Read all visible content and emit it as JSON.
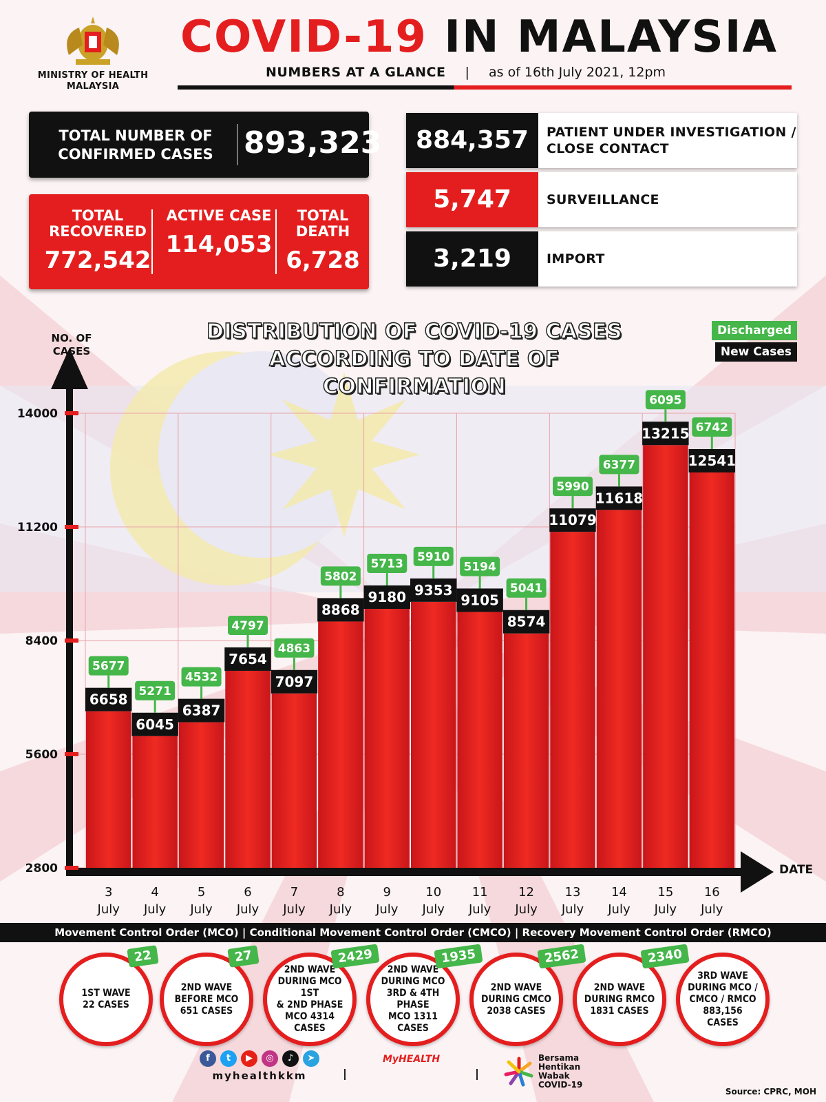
{
  "colors": {
    "red": "#e41e1e",
    "black": "#111111",
    "green": "#45b649",
    "bar_red": "#e41e1e"
  },
  "header": {
    "ministry": "MINISTRY OF HEALTH MALAYSIA",
    "title_red": "COVID-19",
    "title_black": "IN MALAYSIA",
    "subtitle": "NUMBERS AT A GLANCE",
    "separator": "|",
    "as_of": "as of 16th July 2021, 12pm"
  },
  "stats": {
    "total_label": "TOTAL NUMBER OF CONFIRMED CASES",
    "total_value": "893,323",
    "recovered_label": "TOTAL RECOVERED",
    "recovered_value": "772,542",
    "active_label": "ACTIVE CASE",
    "active_value": "114,053",
    "death_label": "TOTAL DEATH",
    "death_value": "6,728"
  },
  "categories_box": [
    {
      "value": "884,357",
      "label": "PATIENT UNDER INVESTIGATION / CLOSE CONTACT",
      "color": "#111111"
    },
    {
      "value": "5,747",
      "label": "SURVEILLANCE",
      "color": "#e41e1e"
    },
    {
      "value": "3,219",
      "label": "IMPORT",
      "color": "#111111"
    }
  ],
  "chart_data": {
    "type": "bar",
    "title": "DISTRIBUTION OF COVID-19 CASES ACCORDING TO DATE OF CONFIRMATION",
    "ylabel": "NO. OF CASES",
    "xlabel": "DATE",
    "yticks": [
      2800,
      5600,
      8400,
      11200,
      14000
    ],
    "ylim": [
      2800,
      14000
    ],
    "legend": [
      "Discharged",
      "New Cases"
    ],
    "legend_position": "top-right",
    "categories": [
      "3 July",
      "4 July",
      "5 July",
      "6 July",
      "7 July",
      "8 July",
      "9 July",
      "10 July",
      "11 July",
      "12 July",
      "13 July",
      "14 July",
      "15 July",
      "16 July"
    ],
    "series": [
      {
        "name": "New Cases",
        "values": [
          6658,
          6045,
          6387,
          7654,
          7097,
          8868,
          9180,
          9353,
          9105,
          8574,
          11079,
          11618,
          13215,
          12541
        ]
      },
      {
        "name": "Discharged",
        "values": [
          5677,
          5271,
          4532,
          4797,
          4863,
          5802,
          5713,
          5910,
          5194,
          5041,
          5990,
          6377,
          6095,
          6742
        ]
      }
    ]
  },
  "footer": {
    "mco_band": "Movement Control Order (MCO) | Conditional Movement Control Order (CMCO) | Recovery Movement Control Order (RMCO)",
    "waves": [
      {
        "text": "1ST WAVE\n22 CASES",
        "badge": "22"
      },
      {
        "text": "2ND WAVE\nBEFORE MCO\n651 CASES",
        "badge": "27"
      },
      {
        "text": "2ND WAVE\nDURING MCO 1ST\n& 2ND PHASE\nMCO 4314\nCASES",
        "badge": "2429"
      },
      {
        "text": "2ND WAVE\nDURING MCO\n3RD & 4TH PHASE\nMCO 1311\nCASES",
        "badge": "1935"
      },
      {
        "text": "2ND WAVE\nDURING CMCO\n2038 CASES",
        "badge": "2562"
      },
      {
        "text": "2ND WAVE\nDURING RMCO\n1831 CASES",
        "badge": "2340"
      },
      {
        "text": "3RD WAVE\nDURING MCO /\nCMCO / RMCO\n883,156\nCASES",
        "badge": ""
      }
    ],
    "social_handle": "myhealthkkm",
    "myhealth": "MyHEALTH",
    "bersama": "Bersama Hentikan Wabak COVID-19",
    "source": "Source: CPRC, MOH"
  }
}
